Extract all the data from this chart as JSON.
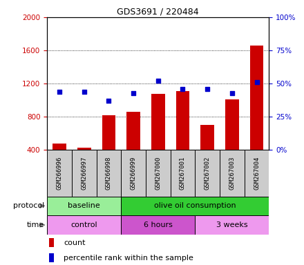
{
  "title": "GDS3691 / 220484",
  "samples": [
    "GSM266996",
    "GSM266997",
    "GSM266998",
    "GSM266999",
    "GSM267000",
    "GSM267001",
    "GSM267002",
    "GSM267003",
    "GSM267004"
  ],
  "count_values": [
    480,
    430,
    820,
    860,
    1080,
    1110,
    700,
    1010,
    1660
  ],
  "percentile_values": [
    44,
    44,
    37,
    43,
    52,
    46,
    46,
    43,
    51
  ],
  "count_color": "#cc0000",
  "percentile_color": "#0000cc",
  "ylim_left": [
    400,
    2000
  ],
  "ylim_right": [
    0,
    100
  ],
  "yticks_left": [
    400,
    800,
    1200,
    1600,
    2000
  ],
  "yticks_right": [
    0,
    25,
    50,
    75,
    100
  ],
  "protocol_groups": [
    {
      "label": "baseline",
      "start": 0,
      "end": 3,
      "color": "#99ee99"
    },
    {
      "label": "olive oil consumption",
      "start": 3,
      "end": 9,
      "color": "#33cc33"
    }
  ],
  "time_groups": [
    {
      "label": "control",
      "start": 0,
      "end": 3,
      "color": "#ee99ee"
    },
    {
      "label": "6 hours",
      "start": 3,
      "end": 6,
      "color": "#cc55cc"
    },
    {
      "label": "3 weeks",
      "start": 6,
      "end": 9,
      "color": "#ee99ee"
    }
  ],
  "legend_count": "count",
  "legend_percentile": "percentile rank within the sample",
  "protocol_label": "protocol",
  "time_label": "time",
  "sample_row_color": "#cccccc",
  "arrow_color": "#888888"
}
